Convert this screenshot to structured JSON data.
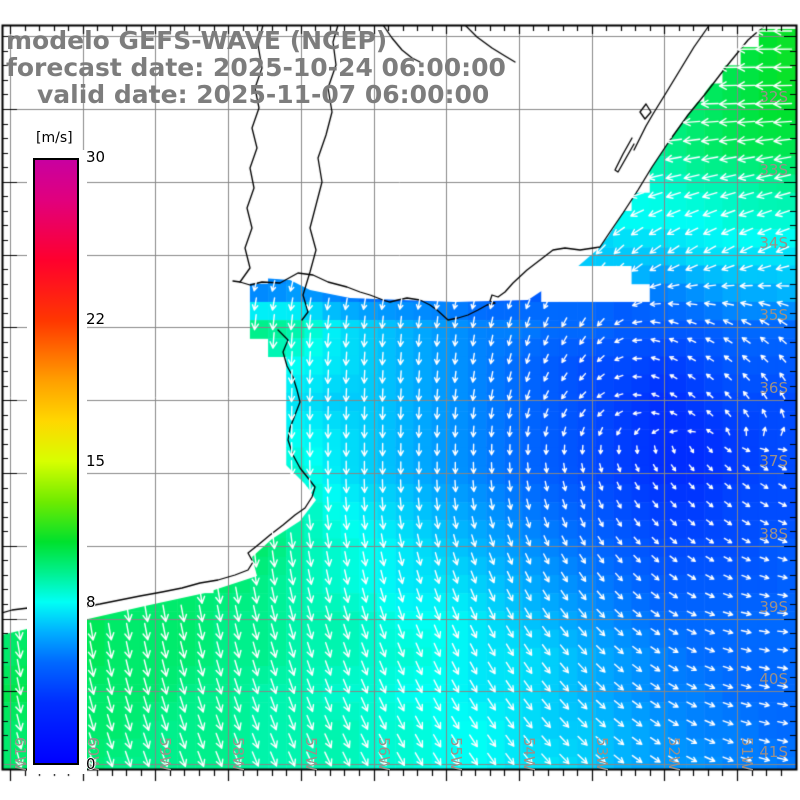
{
  "title": {
    "model_line": "modelo GEFS-WAVE (NCEP)",
    "forecast_line": "forecast date: 2025-10-24 06:00:00",
    "valid_line": "valid date: 2025-11-07 06:00:00"
  },
  "colorbar": {
    "unit_label": "[m/s]",
    "min": 0,
    "max": 30,
    "ticks": [
      30,
      22,
      15,
      8,
      0
    ],
    "stops": [
      [
        0,
        "#0000ff"
      ],
      [
        3,
        "#002dff"
      ],
      [
        5,
        "#0069ff"
      ],
      [
        6.5,
        "#00afff"
      ],
      [
        8,
        "#00fff5"
      ],
      [
        9.5,
        "#00f08c"
      ],
      [
        11,
        "#00e12d"
      ],
      [
        13,
        "#6eeb00"
      ],
      [
        15,
        "#d7ff00"
      ],
      [
        17,
        "#ffd700"
      ],
      [
        19,
        "#ffa000"
      ],
      [
        22,
        "#ff3700"
      ],
      [
        25,
        "#ff002d"
      ],
      [
        28,
        "#e1007d"
      ],
      [
        30,
        "#c800a0"
      ]
    ]
  },
  "axes": {
    "lon_labels": [
      {
        "text": "61W",
        "lon": -61
      },
      {
        "text": "60W",
        "lon": -60
      },
      {
        "text": "59W",
        "lon": -59
      },
      {
        "text": "58W",
        "lon": -58
      },
      {
        "text": "57W",
        "lon": -57
      },
      {
        "text": "56W",
        "lon": -56
      },
      {
        "text": "55W",
        "lon": -55
      },
      {
        "text": "54W",
        "lon": -54
      },
      {
        "text": "53W",
        "lon": -53
      },
      {
        "text": "52W",
        "lon": -52
      },
      {
        "text": "51W",
        "lon": -51
      }
    ],
    "lat_labels": [
      {
        "text": "32S",
        "lat": -32
      },
      {
        "text": "33S",
        "lat": -33
      },
      {
        "text": "34S",
        "lat": -34
      },
      {
        "text": "35S",
        "lat": -35
      },
      {
        "text": "36S",
        "lat": -36
      },
      {
        "text": "37S",
        "lat": -37
      },
      {
        "text": "38S",
        "lat": -38
      },
      {
        "text": "39S",
        "lat": -39
      },
      {
        "text": "40S",
        "lat": -40
      },
      {
        "text": "41S",
        "lat": -41
      }
    ]
  },
  "chart_data": {
    "type": "heatmap",
    "title": "modelo GEFS-WAVE (NCEP)",
    "variable": "wind speed with direction arrows",
    "units": "m/s",
    "region": {
      "lon_west": -61.1,
      "lon_east": -50.2,
      "lat_north": -30.9,
      "lat_south": -41.1
    },
    "colorbar_range": [
      0,
      30
    ],
    "colorbar_ticks": [
      30,
      22,
      15,
      8,
      0
    ],
    "speed_grid": {
      "lon_start": -61,
      "lon_step": 0.5,
      "lat_start": -31,
      "lat_step": -0.5,
      "values": [
        [
          null,
          null,
          null,
          null,
          null,
          null,
          null,
          null,
          null,
          null,
          null,
          null,
          null,
          null,
          null,
          null,
          null,
          null,
          null,
          null,
          null,
          11,
          11.5
        ],
        [
          null,
          null,
          null,
          null,
          null,
          null,
          null,
          null,
          null,
          null,
          null,
          null,
          null,
          null,
          null,
          null,
          null,
          null,
          null,
          null,
          10.5,
          11,
          11.5
        ],
        [
          null,
          null,
          null,
          null,
          null,
          null,
          null,
          null,
          null,
          null,
          null,
          null,
          null,
          null,
          null,
          null,
          null,
          null,
          null,
          10,
          10.5,
          11,
          11
        ],
        [
          null,
          null,
          null,
          null,
          null,
          null,
          null,
          null,
          null,
          null,
          null,
          null,
          null,
          null,
          null,
          null,
          null,
          null,
          9.5,
          10,
          10.5,
          10.5,
          10.5
        ],
        [
          null,
          null,
          null,
          null,
          null,
          null,
          null,
          null,
          null,
          null,
          null,
          null,
          null,
          null,
          null,
          null,
          null,
          null,
          8.5,
          9,
          9,
          9.5,
          9.5
        ],
        [
          null,
          null,
          null,
          null,
          null,
          null,
          null,
          null,
          null,
          null,
          null,
          null,
          null,
          null,
          null,
          null,
          null,
          8,
          8,
          8,
          8.5,
          8.5,
          8.5
        ],
        [
          null,
          null,
          null,
          null,
          null,
          null,
          null,
          null,
          null,
          null,
          null,
          null,
          null,
          null,
          null,
          null,
          7,
          7,
          7,
          7.5,
          7.5,
          7.5,
          7.5
        ],
        [
          null,
          null,
          null,
          null,
          null,
          null,
          null,
          5.5,
          6,
          5.5,
          5,
          5,
          5,
          4.5,
          4.5,
          null,
          null,
          null,
          5.5,
          6,
          6.5,
          6.5,
          7
        ],
        [
          null,
          null,
          null,
          null,
          null,
          null,
          null,
          9.5,
          9,
          7.5,
          7,
          6.5,
          6,
          5.5,
          5.5,
          5,
          5,
          4.5,
          4.5,
          4.5,
          5,
          5,
          5
        ],
        [
          null,
          null,
          null,
          null,
          null,
          null,
          null,
          null,
          8,
          7.5,
          7,
          6.5,
          6,
          5.5,
          5,
          4.5,
          4,
          4,
          3.5,
          4,
          4.5,
          4.5,
          4.5
        ],
        [
          null,
          null,
          null,
          null,
          null,
          null,
          null,
          null,
          7.5,
          7,
          7,
          6.5,
          6,
          5.5,
          5,
          4.5,
          4,
          3.5,
          3,
          3.5,
          4,
          4,
          4
        ],
        [
          null,
          null,
          null,
          null,
          null,
          null,
          null,
          null,
          8,
          7.5,
          7,
          6.5,
          6,
          5.5,
          5,
          4.5,
          4,
          3.5,
          3,
          3,
          3.5,
          4,
          4
        ],
        [
          null,
          null,
          null,
          null,
          null,
          null,
          null,
          null,
          8.5,
          7.5,
          7,
          6.5,
          6,
          5.5,
          5,
          4.5,
          4,
          3.5,
          3,
          3,
          3.5,
          4,
          4
        ],
        [
          null,
          null,
          null,
          null,
          null,
          null,
          null,
          null,
          9,
          8,
          7.5,
          7,
          6.5,
          6,
          5.5,
          5,
          4.5,
          4,
          3.5,
          3.5,
          4,
          4,
          4
        ],
        [
          null,
          null,
          null,
          null,
          null,
          null,
          10,
          10,
          9,
          8.5,
          8,
          7.5,
          7,
          6.5,
          6,
          5.5,
          5,
          4.5,
          4,
          4,
          4,
          4.5,
          4.5
        ],
        [
          null,
          null,
          null,
          null,
          null,
          null,
          10,
          9.5,
          9,
          8.5,
          8,
          7.5,
          7.5,
          7,
          6.5,
          6,
          5.5,
          5,
          4.5,
          4.5,
          4.5,
          4.5,
          5
        ],
        [
          10,
          10,
          10.5,
          10,
          10,
          10,
          9.5,
          9.5,
          9,
          9,
          8.5,
          8,
          8,
          7.5,
          7,
          6.5,
          6,
          5.5,
          5,
          5,
          5,
          5,
          5
        ],
        [
          10,
          10.5,
          10.5,
          10,
          10,
          10,
          9.5,
          9.5,
          9,
          9,
          8.5,
          8.5,
          8,
          7.5,
          7.5,
          7,
          6.5,
          6,
          5.5,
          5,
          5,
          5,
          5
        ],
        [
          10.5,
          10.5,
          10,
          10,
          10,
          9.5,
          9.5,
          9,
          9,
          8.5,
          8.5,
          8,
          8,
          7.5,
          7.5,
          7,
          6.5,
          6,
          5.5,
          5.5,
          5,
          5,
          5
        ],
        [
          10,
          10,
          10,
          10,
          9.5,
          9.5,
          9.5,
          9,
          9,
          9,
          8.5,
          8.5,
          8,
          8,
          7.5,
          7,
          7,
          6.5,
          6,
          5.5,
          5.5,
          5,
          5
        ],
        [
          10,
          10,
          10,
          9.5,
          9.5,
          9.5,
          9.5,
          9,
          9,
          9,
          8.5,
          8.5,
          8,
          8,
          7.5,
          7.5,
          7,
          6.5,
          6,
          6,
          5.5,
          5.5,
          5
        ]
      ]
    },
    "direction_grid": {
      "lon_start": -61,
      "lon_step": 1,
      "lat_start": -31,
      "lat_step": -1,
      "toward_deg": [
        [
          270,
          270,
          270,
          270,
          270,
          270,
          270,
          270,
          270,
          270,
          270,
          270
        ],
        [
          270,
          270,
          270,
          270,
          270,
          270,
          270,
          270,
          270,
          268,
          268,
          268
        ],
        [
          258,
          258,
          258,
          258,
          258,
          258,
          258,
          258,
          256,
          256,
          256,
          256
        ],
        [
          200,
          200,
          200,
          200,
          200,
          200,
          205,
          210,
          220,
          235,
          242,
          248
        ],
        [
          185,
          185,
          185,
          185,
          185,
          185,
          185,
          195,
          215,
          290,
          300,
          310
        ],
        [
          180,
          180,
          180,
          180,
          182,
          182,
          185,
          195,
          230,
          300,
          320,
          340
        ],
        [
          178,
          178,
          178,
          178,
          178,
          180,
          180,
          175,
          165,
          145,
          130,
          115
        ],
        [
          175,
          175,
          175,
          175,
          172,
          170,
          165,
          158,
          148,
          132,
          118,
          105
        ],
        [
          172,
          172,
          170,
          168,
          165,
          162,
          158,
          150,
          138,
          122,
          104,
          90
        ],
        [
          168,
          166,
          164,
          162,
          160,
          156,
          152,
          145,
          135,
          122,
          108,
          95
        ],
        [
          164,
          162,
          160,
          158,
          156,
          152,
          148,
          142,
          132,
          122,
          110,
          100
        ]
      ]
    }
  }
}
